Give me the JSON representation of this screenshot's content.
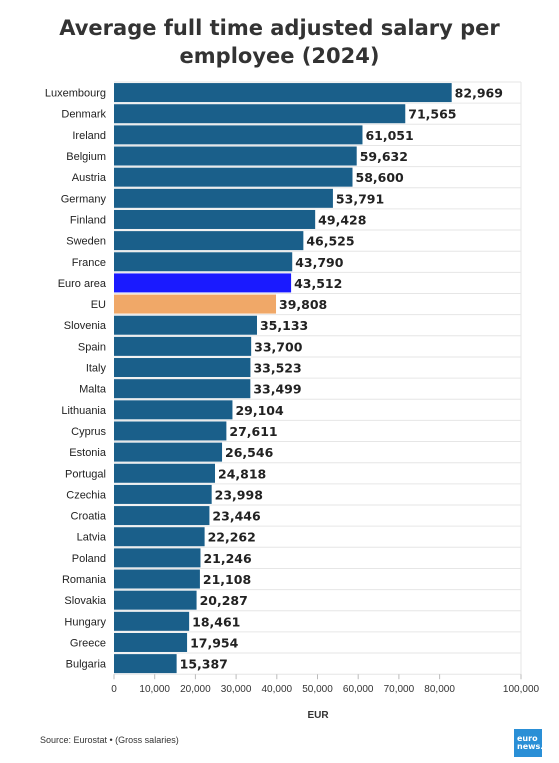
{
  "chart_data": {
    "type": "bar",
    "orientation": "horizontal",
    "title": "Average full time adjusted salary per employee (2024)",
    "xlabel": "EUR",
    "xlim": [
      0,
      100000
    ],
    "xticks": [
      "0",
      "10,000",
      "20,000",
      "30,000",
      "40,000",
      "50,000",
      "60,000",
      "70,000",
      "80,000",
      "100,000"
    ],
    "xtick_values": [
      0,
      10000,
      20000,
      30000,
      40000,
      50000,
      60000,
      70000,
      80000,
      100000
    ],
    "grid": true,
    "categories": [
      "Luxembourg",
      "Denmark",
      "Ireland",
      "Belgium",
      "Austria",
      "Germany",
      "Finland",
      "Sweden",
      "France",
      "Euro area",
      "EU",
      "Slovenia",
      "Spain",
      "Italy",
      "Malta",
      "Lithuania",
      "Cyprus",
      "Estonia",
      "Portugal",
      "Czechia",
      "Croatia",
      "Latvia",
      "Poland",
      "Romania",
      "Slovakia",
      "Hungary",
      "Greece",
      "Bulgaria"
    ],
    "values": [
      82969,
      71565,
      61051,
      59632,
      58600,
      53791,
      49428,
      46525,
      43790,
      43512,
      39808,
      35133,
      33700,
      33523,
      33499,
      29104,
      27611,
      26546,
      24818,
      23998,
      23446,
      22262,
      21246,
      21108,
      20287,
      18461,
      17954,
      15387
    ],
    "value_labels": [
      "82,969",
      "71,565",
      "61,051",
      "59,632",
      "58,600",
      "53,791",
      "49,428",
      "46,525",
      "43,790",
      "43,512",
      "39,808",
      "35,133",
      "33,700",
      "33,523",
      "33,499",
      "29,104",
      "27,611",
      "26,546",
      "24,818",
      "23,998",
      "23,446",
      "22,262",
      "21,246",
      "21,108",
      "20,287",
      "18,461",
      "17,954",
      "15,387"
    ],
    "colors": {
      "default": "#1a5f8a",
      "Euro area": "#1a1aff",
      "EU": "#f0a868"
    }
  },
  "footer": {
    "source": "Source: Eurostat • (Gross salaries)",
    "logo_line1": "euro",
    "logo_line2": "news."
  }
}
